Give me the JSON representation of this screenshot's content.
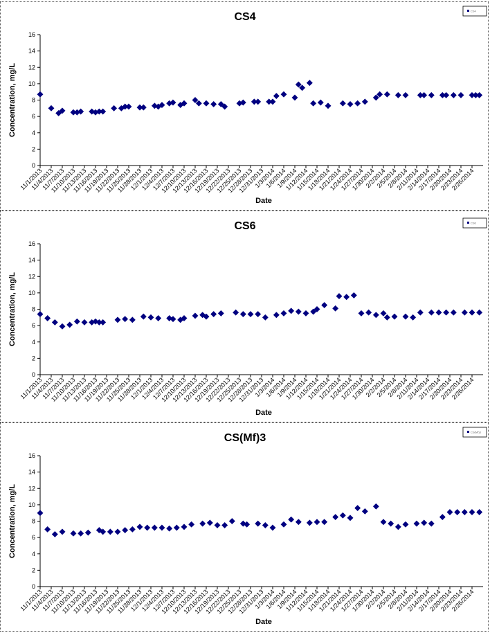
{
  "chart_data": [
    {
      "type": "scatter",
      "title": "CS4",
      "xlabel": "Date",
      "ylabel": "Concentration, mg/L",
      "ylim": [
        0,
        16
      ],
      "yticks": [
        0,
        2,
        4,
        6,
        8,
        10,
        12,
        14,
        16
      ],
      "xtick_labels": [
        "11/1/2013",
        "11/4/2013",
        "11/7/2013",
        "11/10/2013",
        "11/13/2013",
        "11/16/2013",
        "11/19/2013",
        "11/22/2013",
        "11/25/2013",
        "11/28/2013",
        "12/1/2013",
        "12/4/2013",
        "12/7/2013",
        "12/10/2013",
        "12/13/2013",
        "12/16/2013",
        "12/19/2013",
        "12/22/2013",
        "12/25/2013",
        "12/28/2013",
        "12/31/2013",
        "1/3/2014",
        "1/6/2014",
        "1/9/2014",
        "1/12/2014",
        "1/15/2014",
        "1/18/2014",
        "1/21/2014",
        "1/24/2014",
        "1/27/2014",
        "1/30/2014",
        "2/2/2014",
        "2/5/2014",
        "2/8/2014",
        "2/11/2014",
        "2/14/2014",
        "2/17/2014",
        "2/20/2014",
        "2/23/2014",
        "2/26/2014"
      ],
      "legend": "CS4",
      "legend_position": "top-right",
      "grid": false,
      "marker_color": "#000080",
      "series": [
        {
          "x": [
            "11/1/2013",
            "11/4/2013",
            "11/6/2013",
            "11/7/2013",
            "11/10/2013",
            "11/11/2013",
            "11/12/2013",
            "11/15/2013",
            "11/16/2013",
            "11/17/2013",
            "11/18/2013",
            "11/21/2013",
            "11/23/2013",
            "11/24/2013",
            "11/25/2013",
            "11/28/2013",
            "11/29/2013",
            "12/2/2013",
            "12/3/2013",
            "12/4/2013",
            "12/6/2013",
            "12/7/2013",
            "12/9/2013",
            "12/10/2013",
            "12/13/2013",
            "12/14/2013",
            "12/16/2013",
            "12/18/2013",
            "12/20/2013",
            "12/21/2013",
            "12/25/2013",
            "12/26/2013",
            "12/29/2013",
            "12/30/2013",
            "1/2/2014",
            "1/3/2014",
            "1/4/2014",
            "1/6/2014",
            "1/9/2014",
            "1/10/2014",
            "1/11/2014",
            "1/13/2014",
            "1/14/2014",
            "1/16/2014",
            "1/18/2014",
            "1/22/2014",
            "1/24/2014",
            "1/26/2014",
            "1/28/2014",
            "1/31/2014",
            "2/1/2014",
            "2/3/2014",
            "2/6/2014",
            "2/8/2014",
            "2/12/2014",
            "2/13/2014",
            "2/15/2014",
            "2/18/2014",
            "2/19/2014",
            "2/21/2014",
            "2/23/2014",
            "2/26/2014",
            "2/27/2014",
            "2/28/2014"
          ],
          "y": [
            8.7,
            7.0,
            6.4,
            6.7,
            6.5,
            6.5,
            6.6,
            6.6,
            6.5,
            6.6,
            6.6,
            7.0,
            7.0,
            7.2,
            7.2,
            7.1,
            7.1,
            7.3,
            7.2,
            7.4,
            7.6,
            7.7,
            7.4,
            7.6,
            8.0,
            7.6,
            7.6,
            7.5,
            7.5,
            7.2,
            7.6,
            7.7,
            7.8,
            7.8,
            7.8,
            7.8,
            8.5,
            8.7,
            8.3,
            9.9,
            9.5,
            10.1,
            7.6,
            7.7,
            7.3,
            7.6,
            7.5,
            7.6,
            7.8,
            8.3,
            8.7,
            8.7,
            8.6,
            8.6,
            8.6,
            8.6,
            8.6,
            8.6,
            8.6,
            8.6,
            8.6,
            8.6,
            8.6,
            8.6
          ]
        }
      ]
    },
    {
      "type": "scatter",
      "title": "CS6",
      "xlabel": "Date",
      "ylabel": "Concentration, mg/L",
      "ylim": [
        0,
        16
      ],
      "yticks": [
        0,
        2,
        4,
        6,
        8,
        10,
        12,
        14,
        16
      ],
      "xtick_labels": [
        "11/1/2013",
        "11/4/2013",
        "11/7/2013",
        "11/10/2013",
        "11/13/2013",
        "11/16/2013",
        "11/19/2013",
        "11/22/2013",
        "11/25/2013",
        "11/28/2013",
        "12/1/2013",
        "12/4/2013",
        "12/7/2013",
        "12/10/2013",
        "12/13/2013",
        "12/16/2013",
        "12/19/2013",
        "12/22/2013",
        "12/25/2013",
        "12/28/2013",
        "12/31/2013",
        "1/3/2014",
        "1/6/2014",
        "1/9/2014",
        "1/12/2014",
        "1/15/2014",
        "1/18/2014",
        "1/21/2014",
        "1/24/2014",
        "1/27/2014",
        "1/30/2014",
        "2/2/2014",
        "2/5/2014",
        "2/8/2014",
        "2/11/2014",
        "2/14/2014",
        "2/17/2014",
        "2/20/2014",
        "2/23/2014",
        "2/26/2014"
      ],
      "legend": "CS6",
      "legend_position": "top-right",
      "grid": false,
      "marker_color": "#000080",
      "series": [
        {
          "x": [
            "11/1/2013",
            "11/3/2013",
            "11/5/2013",
            "11/7/2013",
            "11/9/2013",
            "11/11/2013",
            "11/13/2013",
            "11/15/2013",
            "11/16/2013",
            "11/17/2013",
            "11/18/2013",
            "11/22/2013",
            "11/24/2013",
            "11/26/2013",
            "11/29/2013",
            "12/1/2013",
            "12/3/2013",
            "12/6/2013",
            "12/7/2013",
            "12/9/2013",
            "12/10/2013",
            "12/13/2013",
            "12/15/2013",
            "12/16/2013",
            "12/18/2013",
            "12/20/2013",
            "12/24/2013",
            "12/26/2013",
            "12/28/2013",
            "12/30/2013",
            "1/1/2014",
            "1/4/2014",
            "1/6/2014",
            "1/8/2014",
            "1/10/2014",
            "1/12/2014",
            "1/14/2014",
            "1/15/2014",
            "1/17/2014",
            "1/20/2014",
            "1/21/2014",
            "1/23/2014",
            "1/25/2014",
            "1/27/2014",
            "1/29/2014",
            "1/31/2014",
            "2/2/2014",
            "2/3/2014",
            "2/5/2014",
            "2/8/2014",
            "2/10/2014",
            "2/12/2014",
            "2/15/2014",
            "2/17/2014",
            "2/19/2014",
            "2/21/2014",
            "2/24/2014",
            "2/26/2014",
            "2/28/2014"
          ],
          "y": [
            7.4,
            6.9,
            6.4,
            5.9,
            6.1,
            6.5,
            6.4,
            6.4,
            6.5,
            6.4,
            6.4,
            6.7,
            6.8,
            6.7,
            7.1,
            7.0,
            6.9,
            6.9,
            6.8,
            6.7,
            6.9,
            7.2,
            7.3,
            7.1,
            7.4,
            7.5,
            7.6,
            7.4,
            7.4,
            7.4,
            7.0,
            7.3,
            7.5,
            7.8,
            7.7,
            7.5,
            7.7,
            8.0,
            8.5,
            8.1,
            9.6,
            9.5,
            9.7,
            7.5,
            7.6,
            7.3,
            7.5,
            7.0,
            7.1,
            7.1,
            7.0,
            7.6,
            7.6,
            7.6,
            7.6,
            7.6,
            7.6,
            7.6,
            7.6
          ]
        }
      ]
    },
    {
      "type": "scatter",
      "title": "CS(Mf)3",
      "xlabel": "Date",
      "ylabel": "Concentration, mg/L",
      "ylim": [
        0,
        16
      ],
      "yticks": [
        0,
        2,
        4,
        6,
        8,
        10,
        12,
        14,
        16
      ],
      "xtick_labels": [
        "11/1/2013",
        "11/4/2013",
        "11/7/2013",
        "11/10/2013",
        "11/13/2013",
        "11/16/2013",
        "11/19/2013",
        "11/22/2013",
        "11/25/2013",
        "11/28/2013",
        "12/1/2013",
        "12/4/2013",
        "12/7/2013",
        "12/10/2013",
        "12/13/2013",
        "12/16/2013",
        "12/19/2013",
        "12/22/2013",
        "12/25/2013",
        "12/28/2013",
        "12/31/2013",
        "1/3/2014",
        "1/6/2014",
        "1/9/2014",
        "1/12/2014",
        "1/15/2014",
        "1/18/2014",
        "1/21/2014",
        "1/24/2014",
        "1/27/2014",
        "1/30/2014",
        "2/2/2014",
        "2/5/2014",
        "2/8/2014",
        "2/11/2014",
        "2/14/2014",
        "2/17/2014",
        "2/20/2014",
        "2/23/2014",
        "2/26/2014"
      ],
      "legend": "CS(Mf)3",
      "legend_position": "top-right",
      "grid": false,
      "marker_color": "#000080",
      "series": [
        {
          "x": [
            "11/1/2013",
            "11/3/2013",
            "11/5/2013",
            "11/7/2013",
            "11/10/2013",
            "11/12/2013",
            "11/14/2013",
            "11/17/2013",
            "11/18/2013",
            "11/20/2013",
            "11/22/2013",
            "11/24/2013",
            "11/26/2013",
            "11/28/2013",
            "11/30/2013",
            "12/2/2013",
            "12/4/2013",
            "12/6/2013",
            "12/8/2013",
            "12/10/2013",
            "12/12/2013",
            "12/15/2013",
            "12/17/2013",
            "12/19/2013",
            "12/21/2013",
            "12/23/2013",
            "12/26/2013",
            "12/27/2013",
            "12/30/2013",
            "1/1/2014",
            "1/3/2014",
            "1/6/2014",
            "1/8/2014",
            "1/10/2014",
            "1/13/2014",
            "1/15/2014",
            "1/17/2014",
            "1/20/2014",
            "1/22/2014",
            "1/24/2014",
            "1/26/2014",
            "1/28/2014",
            "1/31/2014",
            "2/2/2014",
            "2/4/2014",
            "2/6/2014",
            "2/8/2014",
            "2/11/2014",
            "2/13/2014",
            "2/15/2014",
            "2/18/2014",
            "2/20/2014",
            "2/22/2014",
            "2/24/2014",
            "2/26/2014",
            "2/28/2014"
          ],
          "y": [
            9.0,
            7.0,
            6.4,
            6.7,
            6.5,
            6.5,
            6.6,
            6.9,
            6.7,
            6.7,
            6.7,
            6.9,
            7.0,
            7.3,
            7.2,
            7.2,
            7.2,
            7.1,
            7.2,
            7.3,
            7.6,
            7.7,
            7.8,
            7.5,
            7.5,
            8.0,
            7.7,
            7.6,
            7.7,
            7.5,
            7.2,
            7.6,
            8.2,
            7.9,
            7.8,
            7.9,
            7.9,
            8.5,
            8.7,
            8.4,
            9.6,
            9.2,
            9.8,
            7.9,
            7.7,
            7.3,
            7.6,
            7.7,
            7.8,
            7.7,
            8.5,
            9.1,
            9.1,
            9.1,
            9.1,
            9.1
          ]
        }
      ]
    }
  ]
}
